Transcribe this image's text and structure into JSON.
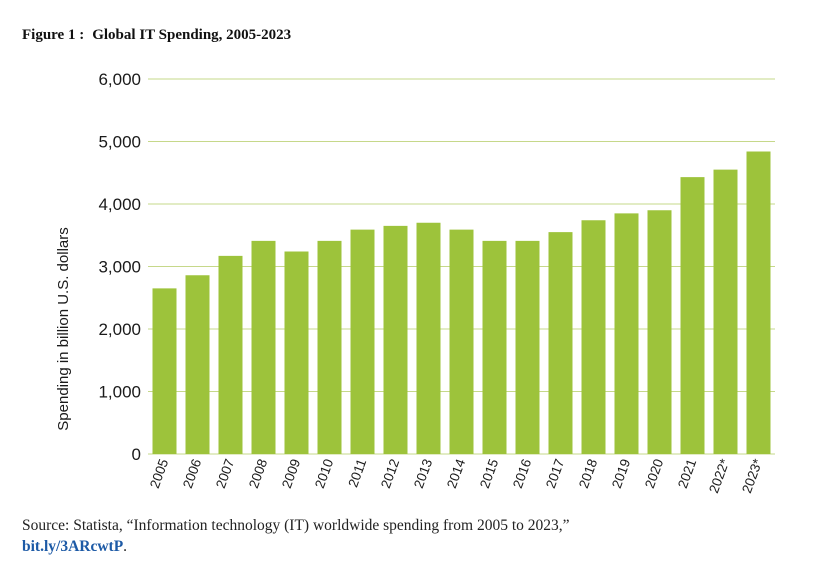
{
  "figure": {
    "label": "Figure 1 :",
    "title": "Global IT Spending, 2005-2023"
  },
  "source": {
    "text": "Source: Statista, “Information technology (IT) worldwide spending from 2005 to 2023,”",
    "link_text": "bit.ly/3ARcwtP",
    "link_suffix": "."
  },
  "colors": {
    "bar": "#9dc33b",
    "grid": "#c6d88a",
    "text": "#1a1a1a"
  },
  "chart_data": {
    "type": "bar",
    "title": "Global IT Spending, 2005-2023",
    "xlabel": "",
    "ylabel": "Spending in billion U.S. dollars",
    "ylim": [
      0,
      6000
    ],
    "yticks": [
      0,
      1000,
      2000,
      3000,
      4000,
      5000,
      6000
    ],
    "ytick_labels": [
      "0",
      "1,000",
      "2,000",
      "3,000",
      "4,000",
      "5,000",
      "6,000"
    ],
    "grid": true,
    "categories": [
      "2005",
      "2006",
      "2007",
      "2008",
      "2009",
      "2010",
      "2011",
      "2012",
      "2013",
      "2014",
      "2015",
      "2016",
      "2017",
      "2018",
      "2019",
      "2020",
      "2021",
      "2022*",
      "2023*"
    ],
    "values": [
      2650,
      2860,
      3170,
      3410,
      3240,
      3410,
      3590,
      3650,
      3700,
      3590,
      3410,
      3410,
      3550,
      3740,
      3850,
      3900,
      4430,
      4550,
      4840
    ]
  }
}
